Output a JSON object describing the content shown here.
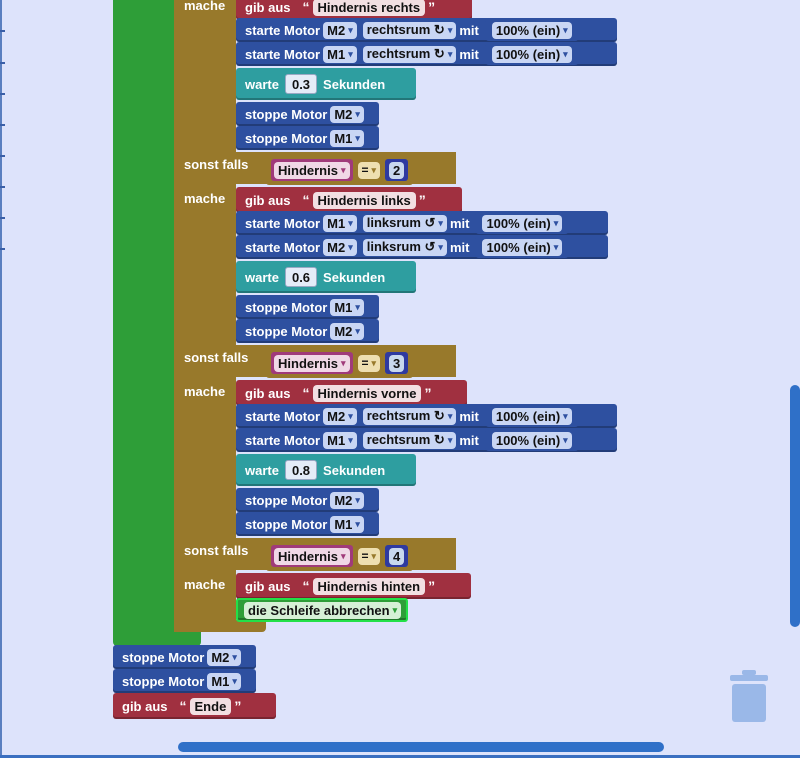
{
  "labels": {
    "mache": "mache",
    "sonst_falls": "sonst falls",
    "gib_aus": "gib aus",
    "starte_motor": "starte Motor",
    "stoppe_motor": "stoppe Motor",
    "mit": "mit",
    "warte": "warte",
    "sekunden": "Sekunden",
    "open_quote": "“",
    "close_quote": "”",
    "dropdown_arrow": "▾"
  },
  "branch1": {
    "print_text": "Hindernis rechts",
    "motor1": {
      "motor": "M2",
      "direction": "rechtsrum ↻",
      "speed": "100% (ein)"
    },
    "motor2": {
      "motor": "M1",
      "direction": "rechtsrum ↻",
      "speed": "100% (ein)"
    },
    "wait_seconds": "0.3",
    "stop1": "M2",
    "stop2": "M1"
  },
  "branch2": {
    "cond_var": "Hindernis",
    "cond_op": "=",
    "cond_value": "2",
    "print_text": "Hindernis links",
    "motor1": {
      "motor": "M1",
      "direction": "linksrum ↺",
      "speed": "100% (ein)"
    },
    "motor2": {
      "motor": "M2",
      "direction": "linksrum ↺",
      "speed": "100% (ein)"
    },
    "wait_seconds": "0.6",
    "stop1": "M1",
    "stop2": "M2"
  },
  "branch3": {
    "cond_var": "Hindernis",
    "cond_op": "=",
    "cond_value": "3",
    "print_text": "Hindernis vorne",
    "motor1": {
      "motor": "M2",
      "direction": "rechtsrum ↻",
      "speed": "100% (ein)"
    },
    "motor2": {
      "motor": "M1",
      "direction": "rechtsrum ↻",
      "speed": "100% (ein)"
    },
    "wait_seconds": "0.8",
    "stop1": "M2",
    "stop2": "M1"
  },
  "branch4": {
    "cond_var": "Hindernis",
    "cond_op": "=",
    "cond_value": "4",
    "print_text": "Hindernis hinten",
    "break_label": "die Schleife abbrechen"
  },
  "after_loop": {
    "stop1": "M2",
    "stop2": "M1",
    "print_text": "Ende"
  },
  "colors": {
    "motor": "#2e50a0",
    "print": "#a03040",
    "wait": "#2e9ea0",
    "control": "#98792b",
    "loop": "#2e9e38",
    "workspace": "#dde3fb",
    "scrollbar": "#2f70c8",
    "trash": "#9ab8e8"
  }
}
